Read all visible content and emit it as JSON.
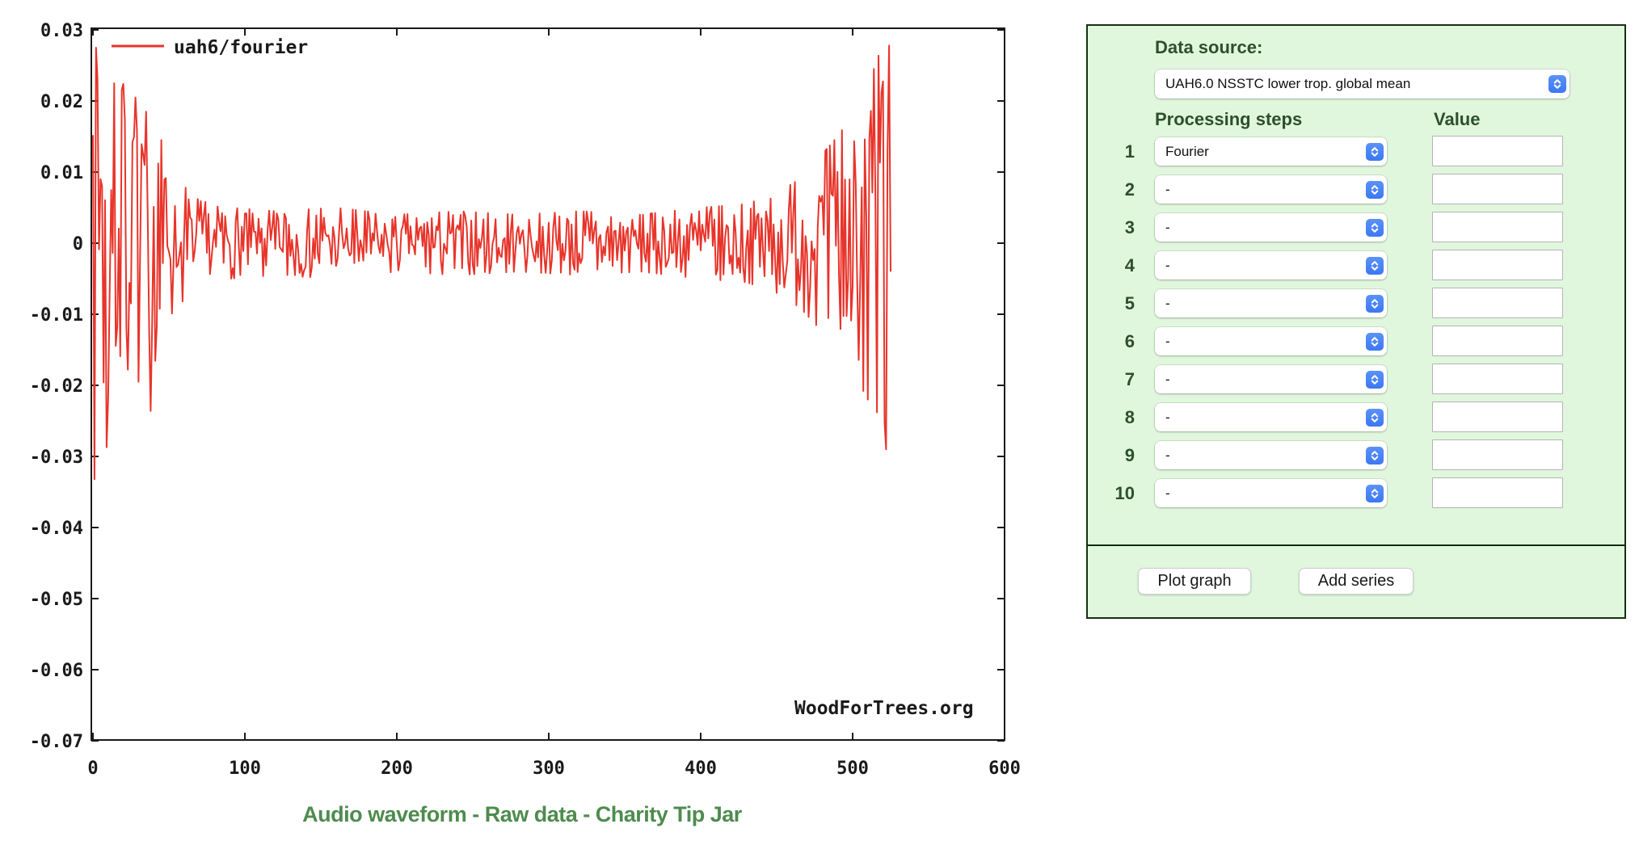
{
  "chart_data": {
    "type": "line",
    "title": "",
    "xlabel": "",
    "ylabel": "",
    "xlim": [
      0,
      600
    ],
    "ylim": [
      -0.07,
      0.03
    ],
    "grid": false,
    "legend_position": "top-left",
    "series": [
      {
        "name": "uah6/fourier",
        "color": "#e8342a"
      }
    ],
    "xticks": {
      "values": [
        0,
        100,
        200,
        300,
        400,
        500,
        600
      ],
      "labels": [
        "0",
        "100",
        "200",
        "300",
        "400",
        "500",
        "600"
      ]
    },
    "yticks": {
      "values": [
        0.03,
        0.02,
        0.01,
        0,
        -0.01,
        -0.02,
        -0.03,
        -0.04,
        -0.05,
        -0.06,
        -0.07
      ],
      "labels": [
        "0.03",
        "0.02",
        "0.01",
        "0",
        "-0.01",
        "-0.02",
        "-0.03",
        "-0.04",
        "-0.05",
        "-0.06",
        "-0.07"
      ]
    },
    "watermark": "WoodForTrees.org",
    "waveform": {
      "description": "Fourier transform of UAH6.0 lower-troposphere series: large oscillations near both ends, small noise (~±0.005) through the middle, data runs x=0..525",
      "x_start": 0,
      "x_end": 525,
      "n": 526,
      "seed": 7,
      "envelope": [
        [
          0,
          0.033
        ],
        [
          3,
          0.03
        ],
        [
          6,
          0.022
        ],
        [
          10,
          0.024
        ],
        [
          15,
          0.02
        ],
        [
          20,
          0.022
        ],
        [
          25,
          0.015
        ],
        [
          30,
          0.016
        ],
        [
          38,
          0.02
        ],
        [
          45,
          0.012
        ],
        [
          55,
          0.009
        ],
        [
          70,
          0.006
        ],
        [
          90,
          0.005
        ],
        [
          120,
          0.0045
        ],
        [
          160,
          0.005
        ],
        [
          200,
          0.004
        ],
        [
          240,
          0.0045
        ],
        [
          280,
          0.004
        ],
        [
          320,
          0.0045
        ],
        [
          360,
          0.004
        ],
        [
          400,
          0.005
        ],
        [
          430,
          0.0055
        ],
        [
          450,
          0.007
        ],
        [
          465,
          0.009
        ],
        [
          478,
          0.012
        ],
        [
          490,
          0.015
        ],
        [
          500,
          0.018
        ],
        [
          510,
          0.022
        ],
        [
          518,
          0.027
        ],
        [
          525,
          0.03
        ]
      ],
      "pinned_points": [
        [
          0,
          0.0152
        ],
        [
          1,
          -0.0332
        ],
        [
          2,
          0.0275
        ],
        [
          5,
          0.009
        ],
        [
          7,
          -0.0196
        ],
        [
          9,
          -0.0287
        ],
        [
          14,
          0.0225
        ],
        [
          16,
          -0.0118
        ],
        [
          20,
          0.0224
        ],
        [
          22,
          -0.012
        ],
        [
          26,
          0.0142
        ],
        [
          28,
          0.0205
        ],
        [
          30,
          -0.0195
        ],
        [
          34,
          0.011
        ],
        [
          38,
          -0.0236
        ],
        [
          45,
          0.0145
        ],
        [
          508,
          0.0146
        ],
        [
          512,
          0.0186
        ],
        [
          516,
          -0.0238
        ],
        [
          519,
          0.0212
        ],
        [
          521,
          -0.0252
        ],
        [
          522,
          -0.029
        ],
        [
          524,
          0.0278
        ],
        [
          525,
          -0.004
        ]
      ]
    }
  },
  "links": {
    "separator": " - ",
    "items": [
      "Audio waveform",
      "Raw data",
      "Charity Tip Jar"
    ]
  },
  "panel": {
    "data_source_label": "Data source:",
    "data_source_value": "UAH6.0 NSSTC lower trop. global mean",
    "headers": {
      "processing": "Processing steps",
      "value": "Value"
    },
    "rows": [
      {
        "num": "1",
        "step": "Fourier",
        "value": ""
      },
      {
        "num": "2",
        "step": "-",
        "value": ""
      },
      {
        "num": "3",
        "step": "-",
        "value": ""
      },
      {
        "num": "4",
        "step": "-",
        "value": ""
      },
      {
        "num": "5",
        "step": "-",
        "value": ""
      },
      {
        "num": "6",
        "step": "-",
        "value": ""
      },
      {
        "num": "7",
        "step": "-",
        "value": ""
      },
      {
        "num": "8",
        "step": "-",
        "value": ""
      },
      {
        "num": "9",
        "step": "-",
        "value": ""
      },
      {
        "num": "10",
        "step": "-",
        "value": ""
      }
    ],
    "buttons": {
      "plot": "Plot graph",
      "add": "Add series"
    }
  }
}
